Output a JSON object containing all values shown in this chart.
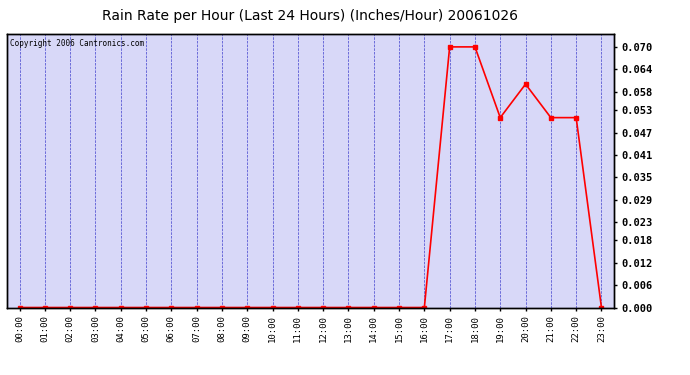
{
  "title": "Rain Rate per Hour (Last 24 Hours) (Inches/Hour) 20061026",
  "copyright": "Copyright 2006 Cantronics.com",
  "hours": [
    "00:00",
    "01:00",
    "02:00",
    "03:00",
    "04:00",
    "05:00",
    "06:00",
    "07:00",
    "08:00",
    "09:00",
    "10:00",
    "11:00",
    "12:00",
    "13:00",
    "14:00",
    "15:00",
    "16:00",
    "17:00",
    "18:00",
    "19:00",
    "20:00",
    "21:00",
    "22:00",
    "23:00"
  ],
  "values": [
    0.0,
    0.0,
    0.0,
    0.0,
    0.0,
    0.0,
    0.0,
    0.0,
    0.0,
    0.0,
    0.0,
    0.0,
    0.0,
    0.0,
    0.0,
    0.0,
    0.0,
    0.07,
    0.07,
    0.051,
    0.06,
    0.051,
    0.051,
    0.0
  ],
  "line_color": "#ff0000",
  "marker": "s",
  "marker_size": 2.5,
  "bg_color": "#ffffff",
  "plot_bg_color": "#d8d8f8",
  "grid_color": "#0000bb",
  "title_fontsize": 10,
  "ylim": [
    0.0,
    0.07352941
  ],
  "yticks": [
    0.0,
    0.006,
    0.012,
    0.018,
    0.023,
    0.029,
    0.035,
    0.041,
    0.047,
    0.053,
    0.058,
    0.064,
    0.07
  ]
}
